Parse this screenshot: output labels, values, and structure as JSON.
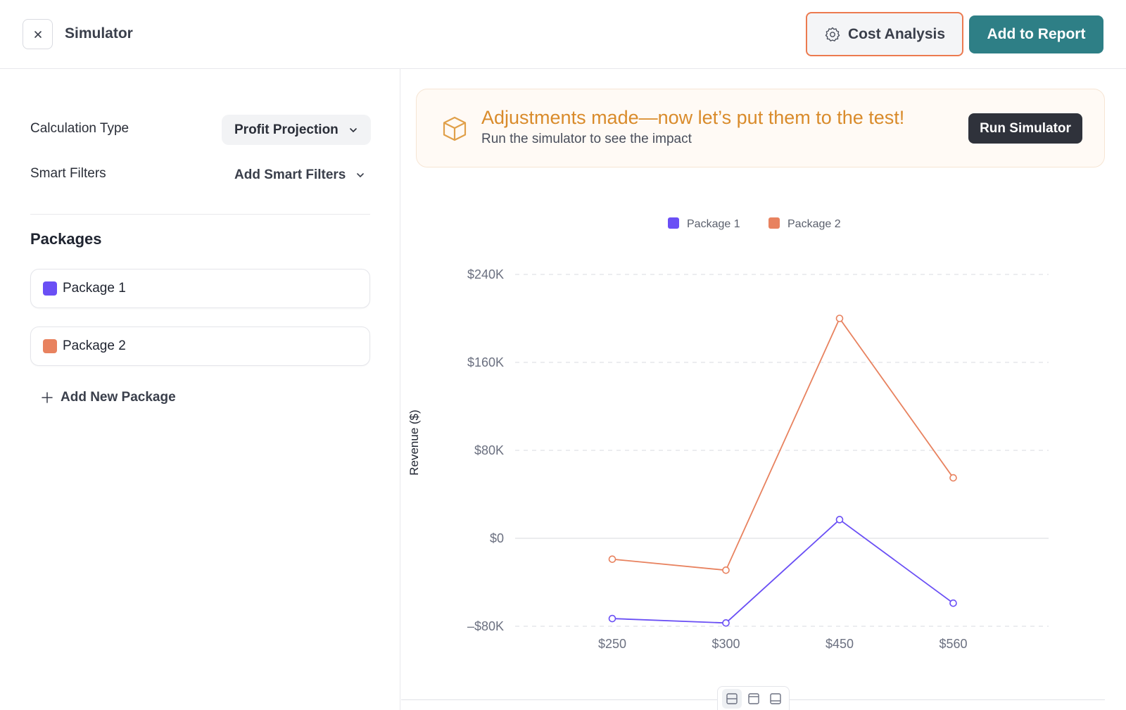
{
  "header": {
    "title": "Simulator",
    "cost_analysis_label": "Cost Analysis",
    "add_to_report_label": "Add to Report",
    "accent_color": "#2e7f86",
    "highlight_color": "#ec7a4f"
  },
  "left_panel": {
    "calculation_type": {
      "label": "Calculation Type",
      "value": "Profit Projection"
    },
    "smart_filters": {
      "label": "Smart Filters",
      "value": "Add Smart Filters"
    },
    "packages_title": "Packages",
    "packages": [
      {
        "name": "Package 1",
        "color": "#6a4ff5"
      },
      {
        "name": "Package 2",
        "color": "#e8825f"
      }
    ],
    "add_package_label": "Add New Package"
  },
  "banner": {
    "title": "Adjustments made—now let’s put them to the test!",
    "subtitle": "Run the simulator to see the impact",
    "button_label": "Run Simulator",
    "icon": "box-icon"
  },
  "chart_data": {
    "type": "line",
    "categories": [
      "$250",
      "$300",
      "$450",
      "$560"
    ],
    "series": [
      {
        "name": "Package 1",
        "color": "#6a4ff5",
        "values": [
          -73000,
          -77000,
          17000,
          -59000
        ]
      },
      {
        "name": "Package 2",
        "color": "#e8825f",
        "values": [
          -19000,
          -29000,
          200000,
          55000
        ]
      }
    ],
    "ylabel": "Revenue ($)",
    "ylim": [
      -80000,
      240000
    ],
    "yticks": [
      240000,
      160000,
      80000,
      0,
      -80000
    ],
    "ytick_labels": [
      "$240K",
      "$160K",
      "$80K",
      "$0",
      "–$80K"
    ],
    "grid": true,
    "legend_position": "top-center"
  },
  "view_toolbar": {
    "icons": [
      "split-view-icon",
      "top-panel-icon",
      "bottom-panel-icon"
    ],
    "active_index": 0
  }
}
